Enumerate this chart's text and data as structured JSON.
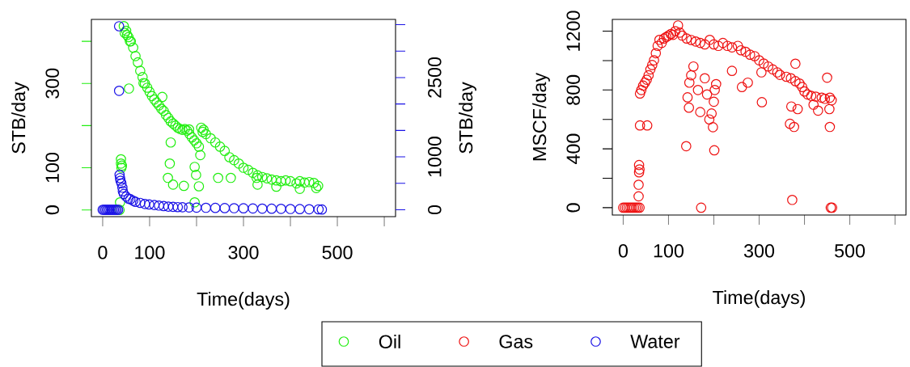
{
  "chart_data": [
    {
      "type": "scatter",
      "xlabel": "Time(days)",
      "ylabel": "STB/day",
      "y2label": "STB/day",
      "marker": "circle",
      "legend": "bottom",
      "xlim": [
        -24,
        624
      ],
      "xticks": [
        0,
        100,
        {
          "value": 200,
          "label": null
        },
        300,
        {
          "value": 400,
          "label": null
        },
        500,
        {
          "value": 600,
          "label": null
        }
      ],
      "ylim": [
        -16,
        452
      ],
      "yticks": [
        0,
        100,
        {
          "value": 200,
          "label": null
        },
        300,
        {
          "value": 400,
          "label": null
        }
      ],
      "y2lim": [
        -130,
        3600
      ],
      "y2ticks": [
        0,
        {
          "value": 500,
          "label": null
        },
        1000,
        {
          "value": 1500,
          "label": null
        },
        {
          "value": 2000,
          "label": null
        },
        2500,
        {
          "value": 3000,
          "label": null
        },
        {
          "value": 3500,
          "label": null
        }
      ],
      "series": [
        {
          "name": "Oil",
          "color": "#22ee11",
          "x": [
            36,
            37,
            39,
            39,
            40,
            41,
            45,
            47,
            50,
            52,
            55,
            56,
            58,
            60,
            65,
            70,
            75,
            80,
            85,
            87,
            90,
            95,
            100,
            105,
            110,
            115,
            120,
            125,
            127,
            130,
            135,
            140,
            145,
            150,
            155,
            160,
            165,
            170,
            175,
            180,
            184,
            185,
            190,
            195,
            200,
            205,
            208,
            210,
            213,
            215,
            220,
            230,
            240,
            250,
            260,
            270,
            280,
            290,
            300,
            310,
            320,
            328,
            330,
            340,
            350,
            360,
            370,
            380,
            390,
            400,
            413,
            420,
            430,
            440,
            450,
            459,
            139,
            145,
            143,
            150,
            173,
            196,
            199,
            205,
            196,
            246,
            273,
            330,
            370,
            420,
            455
          ],
          "values": [
            0,
            18,
            120,
            110,
            100,
            105,
            436,
            420,
            425,
            415,
            410,
            288,
            400,
            400,
            385,
            365,
            350,
            330,
            315,
            301,
            300,
            290,
            280,
            270,
            262,
            255,
            248,
            240,
            268,
            235,
            225,
            218,
            210,
            205,
            200,
            195,
            192,
            190,
            192,
            188,
            191,
            180,
            172,
            165,
            158,
            150,
            130,
            195,
            185,
            190,
            180,
            170,
            160,
            150,
            140,
            125,
            118,
            110,
            100,
            95,
            88,
            76,
            82,
            78,
            75,
            72,
            70,
            68,
            70,
            68,
            63,
            68,
            65,
            66,
            64,
            57,
            76,
            160,
            110,
            60,
            57,
            102,
            83,
            56,
            18,
            76,
            76,
            60,
            55,
            50,
            52
          ]
        },
        {
          "name": "Water",
          "color": "#1a12e6",
          "axis": "y2",
          "x": [
            0,
            3,
            6,
            9,
            12,
            15,
            18,
            21,
            24,
            27,
            30,
            33,
            35,
            35,
            36,
            37,
            38,
            40,
            42,
            43,
            45,
            50,
            55,
            59,
            65,
            70,
            80,
            90,
            99,
            110,
            120,
            130,
            140,
            150,
            160,
            170,
            184,
            200,
            220,
            240,
            260,
            280,
            300,
            320,
            340,
            360,
            380,
            400,
            420,
            440,
            460,
            467
          ],
          "values": [
            0,
            0,
            0,
            0,
            0,
            0,
            0,
            0,
            0,
            0,
            0,
            0,
            3470,
            2250,
            660,
            600,
            550,
            500,
            420,
            350,
            300,
            250,
            210,
            200,
            170,
            150,
            130,
            110,
            100,
            90,
            80,
            70,
            60,
            55,
            50,
            48,
            45,
            40,
            38,
            35,
            32,
            30,
            28,
            25,
            22,
            20,
            18,
            15,
            12,
            10,
            8,
            5
          ]
        }
      ]
    },
    {
      "type": "scatter",
      "xlabel": "Time(days)",
      "ylabel": "MSCF/day",
      "marker": "circle",
      "legend": "bottom",
      "xlim": [
        -24,
        624
      ],
      "xticks": [
        0,
        100,
        {
          "value": 200,
          "label": null
        },
        300,
        {
          "value": 400,
          "label": null
        },
        500,
        {
          "value": 600,
          "label": null
        }
      ],
      "ylim": [
        -50,
        1280
      ],
      "yticks": [
        0,
        {
          "value": 200,
          "label": null
        },
        400,
        {
          "value": 600,
          "label": null
        },
        800,
        {
          "value": 1000,
          "label": null
        },
        1200
      ],
      "series": [
        {
          "name": "Gas",
          "color": "#ee1111",
          "x": [
            0,
            4,
            8,
            12,
            16,
            20,
            24,
            28,
            32,
            36,
            34,
            34,
            35,
            36,
            35,
            37,
            53,
            37,
            40,
            44,
            48,
            52,
            56,
            60,
            64,
            68,
            72,
            76,
            80,
            85,
            90,
            95,
            100,
            105,
            110,
            115,
            121,
            125,
            130,
            140,
            150,
            160,
            170,
            180,
            191,
            200,
            210,
            220,
            230,
            240,
            253,
            260,
            270,
            280,
            290,
            300,
            310,
            320,
            330,
            340,
            346,
            360,
            370,
            380,
            389,
            395,
            400,
            407,
            415,
            425,
            438,
            445,
            456,
            460,
            139,
            145,
            142,
            146,
            150,
            155,
            172,
            165,
            170,
            180,
            185,
            190,
            195,
            198,
            201,
            200,
            202,
            205,
            240,
            262,
            275,
            306,
            305,
            371,
            368,
            377,
            373,
            380,
            385,
            420,
            430,
            450,
            456,
            458,
            461,
            455
          ],
          "values": [
            0,
            0,
            0,
            0,
            0,
            0,
            0,
            0,
            0,
            0,
            77,
            156,
            240,
            260,
            290,
            559,
            559,
            776,
            800,
            830,
            850,
            870,
            900,
            940,
            970,
            1002,
            1050,
            1100,
            1141,
            1120,
            1150,
            1160,
            1170,
            1180,
            1175,
            1200,
            1239,
            1190,
            1170,
            1150,
            1140,
            1130,
            1120,
            1110,
            1141,
            1110,
            1100,
            1120,
            1100,
            1090,
            1100,
            1070,
            1060,
            1040,
            1030,
            1002,
            980,
            960,
            940,
            920,
            903,
            890,
            880,
            860,
            844,
            820,
            790,
            770,
            760,
            755,
            748,
            740,
            748,
            730,
            418,
            680,
            750,
            850,
            900,
            960,
            0,
            800,
            650,
            880,
            770,
            600,
            640,
            547,
            390,
            720,
            800,
            840,
            930,
            820,
            850,
            717,
            920,
            688,
            570,
            549,
            53,
            979,
            670,
            700,
            660,
            884,
            549,
            0,
            0,
            670
          ]
        }
      ]
    }
  ]
}
